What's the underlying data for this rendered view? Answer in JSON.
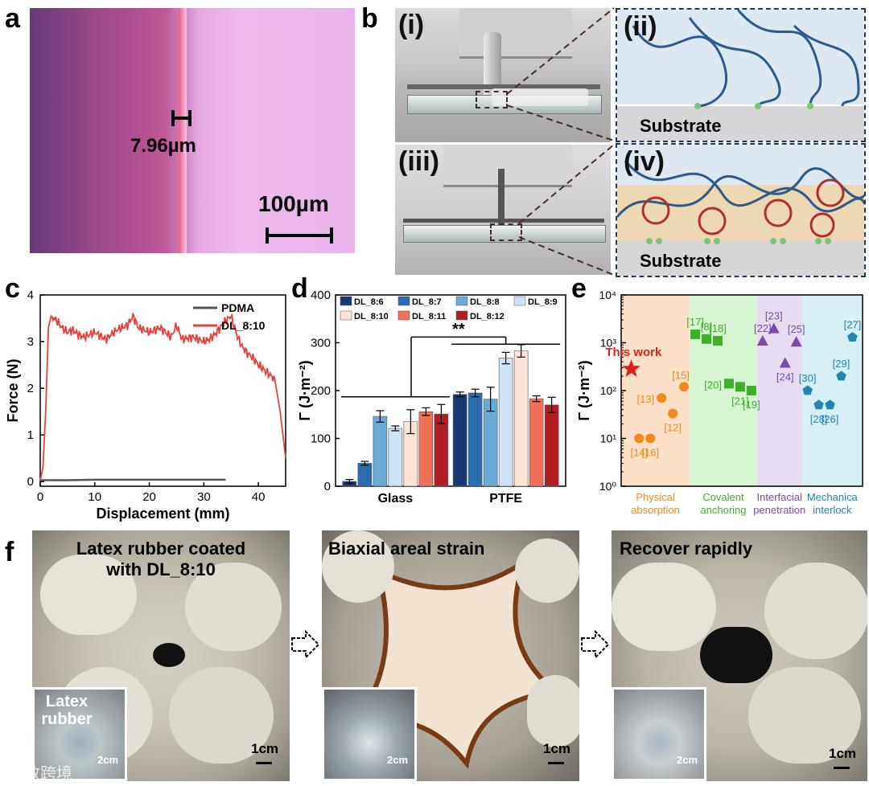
{
  "panel_labels": {
    "a": "a",
    "b": "b",
    "c": "c",
    "d": "d",
    "e": "e",
    "f": "f"
  },
  "panel_a": {
    "measure_label": "7.96µm",
    "scale_label": "100µm"
  },
  "panel_b": {
    "sub_i": "(i)",
    "sub_ii": "(ii)",
    "sub_iii": "(iii)",
    "sub_iv": "(iv)",
    "substrate_label": "Substrate"
  },
  "panel_f": {
    "caption_1": "Latex rubber coated",
    "caption_1b": "with DL_8:10",
    "caption_2": "Biaxial areal strain",
    "caption_3": "Recover rapidly",
    "inset_label_1": "Latex",
    "inset_label_1b": "rubber",
    "scale_main": "1cm",
    "scale_inset": "2cm"
  },
  "watermark": "大数跨境",
  "colors": {
    "pdma": "#555555",
    "dl810": "#e8403a"
  },
  "chart_data": [
    {
      "id": "c",
      "type": "line",
      "xlabel": "Displacement (mm)",
      "ylabel": "Force (N)",
      "xlim": [
        0,
        45
      ],
      "ylim": [
        -0.1,
        4.0
      ],
      "xticks": [
        0,
        10,
        20,
        30,
        40
      ],
      "yticks": [
        0,
        1,
        2,
        3,
        4
      ],
      "legend": "top-right",
      "series": [
        {
          "name": "PDMA",
          "color": "#555555",
          "x": [
            0,
            5,
            10,
            15,
            20,
            25,
            30,
            34
          ],
          "y": [
            0.03,
            0.03,
            0.04,
            0.04,
            0.04,
            0.04,
            0.04,
            0.04
          ]
        },
        {
          "name": "DL_8:10",
          "color": "#e8403a",
          "x": [
            0,
            0.5,
            1,
            1.5,
            2,
            3,
            4,
            5,
            6,
            7,
            8,
            10,
            12,
            14,
            16,
            17,
            18,
            20,
            22,
            24,
            25,
            26,
            28,
            30,
            31,
            32,
            33,
            34,
            35,
            36,
            37,
            38,
            39,
            40,
            41,
            42,
            43,
            44,
            44.5,
            45
          ],
          "y": [
            0.02,
            0.3,
            1.5,
            3.3,
            3.55,
            3.45,
            3.3,
            3.2,
            3.25,
            3.15,
            3.1,
            3.2,
            3.05,
            3.25,
            3.35,
            3.55,
            3.3,
            3.2,
            3.3,
            3.1,
            3.35,
            3.05,
            3.1,
            3.0,
            3.05,
            3.15,
            3.3,
            3.45,
            3.55,
            3.15,
            2.9,
            2.75,
            2.65,
            2.5,
            2.4,
            2.3,
            2.2,
            1.5,
            1.0,
            0.5
          ]
        }
      ]
    },
    {
      "id": "d",
      "type": "bar",
      "ylabel": "Γ (J·m⁻²)",
      "ylim": [
        0,
        400
      ],
      "yticks": [
        0,
        100,
        200,
        300,
        400
      ],
      "categories": [
        "Glass",
        "PTFE"
      ],
      "legend": "top",
      "significance": "**",
      "series": [
        {
          "name": "DL_8:6",
          "color": "#173b70",
          "values": [
            10,
            192
          ],
          "err": [
            4,
            5
          ]
        },
        {
          "name": "DL_8:7",
          "color": "#2b6cb0",
          "values": [
            48,
            195
          ],
          "err": [
            4,
            8
          ]
        },
        {
          "name": "DL_8:8",
          "color": "#6aaad8",
          "values": [
            146,
            182
          ],
          "err": [
            12,
            25
          ]
        },
        {
          "name": "DL_8:9",
          "color": "#cfe2f3",
          "values": [
            121,
            268
          ],
          "err": [
            5,
            12
          ]
        },
        {
          "name": "DL_8:10",
          "color": "#fde4d6",
          "values": [
            135,
            283
          ],
          "err": [
            25,
            13
          ]
        },
        {
          "name": "DL_8:11",
          "color": "#f07057",
          "values": [
            156,
            183
          ],
          "err": [
            8,
            6
          ]
        },
        {
          "name": "DL_8:12",
          "color": "#b01e24",
          "values": [
            151,
            170
          ],
          "err": [
            20,
            16
          ]
        }
      ]
    },
    {
      "id": "e",
      "type": "scatter",
      "ylabel": "Γ (J·m⁻²)",
      "yscale": "log",
      "ylim": [
        1,
        10000
      ],
      "yticks": [
        "10⁰",
        "10¹",
        "10²",
        "10³",
        "10⁴"
      ],
      "groups": [
        {
          "name": "Physical absorption",
          "label_line1": "Physical",
          "label_line2": "absorption",
          "bg": "#fde0c8",
          "color": "#f08a1e",
          "marker": "circle",
          "points": [
            {
              "ref": "[14]",
              "x": 1,
              "y": 10
            },
            {
              "ref": "[16]",
              "x": 2,
              "y": 10
            },
            {
              "ref": "[13]",
              "x": 3,
              "y": 70
            },
            {
              "ref": "[12]",
              "x": 4,
              "y": 33
            },
            {
              "ref": "[15]",
              "x": 5,
              "y": 120
            }
          ]
        },
        {
          "name": "Covalent anchoring",
          "label_line1": "Covalent",
          "label_line2": "anchoring",
          "bg": "#d7f5d2",
          "color": "#3fae2a",
          "marker": "square",
          "points": [
            {
              "ref": "[17]",
              "x": 6,
              "y": 1500
            },
            {
              "ref": "[8]",
              "x": 7,
              "y": 1200
            },
            {
              "ref": "[18]",
              "x": 8,
              "y": 1100
            },
            {
              "ref": "[20]",
              "x": 9,
              "y": 140
            },
            {
              "ref": "[21]",
              "x": 10,
              "y": 120
            },
            {
              "ref": "[19]",
              "x": 11,
              "y": 100
            }
          ]
        },
        {
          "name": "Interfacial penetration",
          "label_line1": "Interfacial",
          "label_line2": "penetration",
          "bg": "#e6dcf2",
          "color": "#7a4aa6",
          "marker": "triangle",
          "points": [
            {
              "ref": "[22]",
              "x": 12,
              "y": 1100
            },
            {
              "ref": "[23]",
              "x": 13,
              "y": 2000
            },
            {
              "ref": "[24]",
              "x": 14,
              "y": 380
            },
            {
              "ref": "[25]",
              "x": 15,
              "y": 1050
            }
          ]
        },
        {
          "name": "Mechanica interlock",
          "label_line1": "Mechanica",
          "label_line2": "interlock",
          "bg": "#d6f0f5",
          "color": "#1e86b0",
          "marker": "pentagon",
          "points": [
            {
              "ref": "[30]",
              "x": 16,
              "y": 100
            },
            {
              "ref": "[28]",
              "x": 17,
              "y": 50
            },
            {
              "ref": "[26]",
              "x": 18,
              "y": 50
            },
            {
              "ref": "[29]",
              "x": 19,
              "y": 200
            },
            {
              "ref": "[27]",
              "x": 20,
              "y": 1300
            }
          ]
        }
      ],
      "highlight": {
        "label": "This work",
        "color": "#e02020",
        "marker": "star",
        "y": 283
      }
    }
  ]
}
